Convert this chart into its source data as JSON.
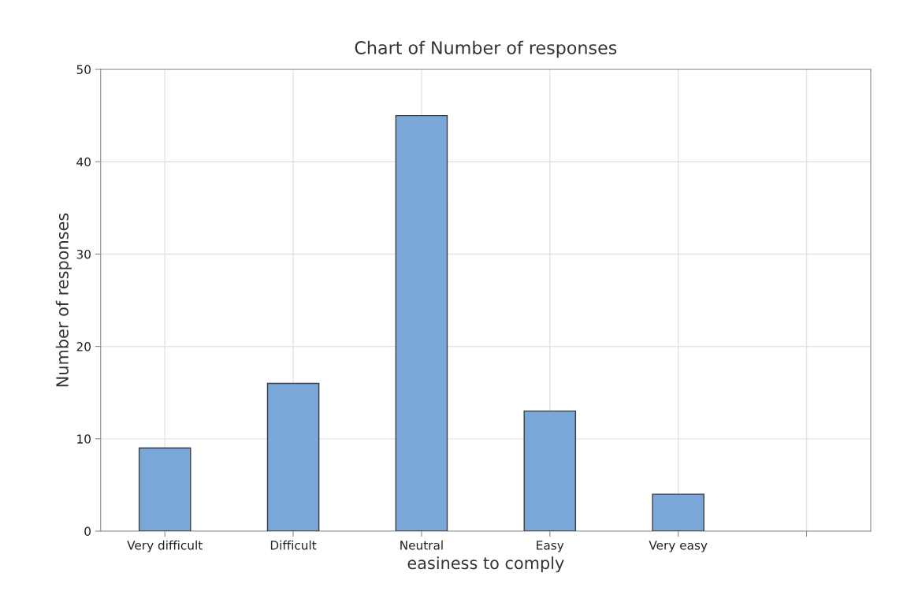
{
  "chart_data": {
    "type": "bar",
    "title": "Chart of Number of responses",
    "xlabel": "easiness to comply",
    "ylabel": "Number of responses",
    "categories": [
      "Very difficult",
      "Difficult",
      "Neutral",
      "Easy",
      "Very easy",
      null
    ],
    "values": [
      9,
      16,
      45,
      13,
      4,
      null
    ],
    "color": "#7ba7d8",
    "ylim": [
      0,
      50
    ],
    "yticks": [
      0,
      10,
      20,
      30,
      40,
      50
    ],
    "grid": true
  }
}
